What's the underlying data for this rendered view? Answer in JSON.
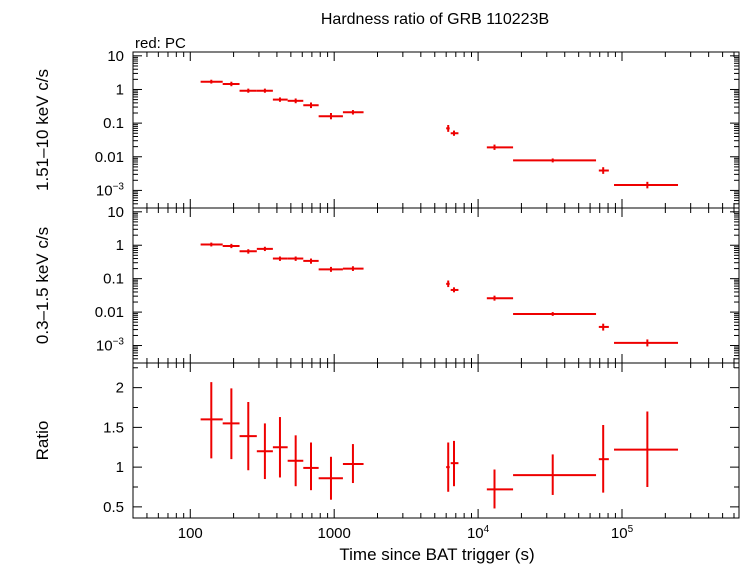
{
  "chart_data": {
    "type": "scatter",
    "title": "Hardness ratio of GRB 110223B",
    "legend": "red: PC",
    "xlabel": "Time since BAT trigger (s)",
    "xscale": "log",
    "xlim": [
      40,
      650000
    ],
    "x_ticks": [
      {
        "value": 100,
        "label": "100"
      },
      {
        "value": 1000,
        "label": "1000"
      },
      {
        "value": 10000,
        "label": "10",
        "exp": "4"
      },
      {
        "value": 100000,
        "label": "10",
        "exp": "5"
      }
    ],
    "color": "#ee0000",
    "panels": [
      {
        "name": "hard-band",
        "ylabel": "1.51–10 keV c/s",
        "yscale": "log",
        "ylim": [
          0.0003,
          13
        ],
        "y_ticks": [
          {
            "value": 10,
            "label": "10"
          },
          {
            "value": 1,
            "label": "1"
          },
          {
            "value": 0.1,
            "label": "0.1"
          },
          {
            "value": 0.01,
            "label": "0.01"
          },
          {
            "value": 0.001,
            "label": "10",
            "exp": "−3"
          }
        ],
        "points": [
          {
            "x": 140,
            "xlo": 118,
            "xhi": 168,
            "y": 1.7,
            "ylo": 1.5,
            "yhi": 1.95
          },
          {
            "x": 193,
            "xlo": 168,
            "xhi": 220,
            "y": 1.45,
            "ylo": 1.25,
            "yhi": 1.7
          },
          {
            "x": 253,
            "xlo": 220,
            "xhi": 290,
            "y": 0.92,
            "ylo": 0.8,
            "yhi": 1.06
          },
          {
            "x": 330,
            "xlo": 290,
            "xhi": 375,
            "y": 0.92,
            "ylo": 0.8,
            "yhi": 1.06
          },
          {
            "x": 420,
            "xlo": 375,
            "xhi": 475,
            "y": 0.5,
            "ylo": 0.43,
            "yhi": 0.58
          },
          {
            "x": 540,
            "xlo": 475,
            "xhi": 610,
            "y": 0.46,
            "ylo": 0.39,
            "yhi": 0.54
          },
          {
            "x": 690,
            "xlo": 610,
            "xhi": 780,
            "y": 0.34,
            "ylo": 0.28,
            "yhi": 0.41
          },
          {
            "x": 950,
            "xlo": 780,
            "xhi": 1150,
            "y": 0.16,
            "ylo": 0.13,
            "yhi": 0.2
          },
          {
            "x": 1350,
            "xlo": 1150,
            "xhi": 1600,
            "y": 0.21,
            "ylo": 0.18,
            "yhi": 0.245
          },
          {
            "x": 6200,
            "xlo": 6000,
            "xhi": 6350,
            "y": 0.07,
            "ylo": 0.055,
            "yhi": 0.088
          },
          {
            "x": 6800,
            "xlo": 6450,
            "xhi": 7300,
            "y": 0.05,
            "ylo": 0.042,
            "yhi": 0.06
          },
          {
            "x": 13000,
            "xlo": 11500,
            "xhi": 17500,
            "y": 0.019,
            "ylo": 0.016,
            "yhi": 0.023
          },
          {
            "x": 33000,
            "xlo": 17500,
            "xhi": 66000,
            "y": 0.0078,
            "ylo": 0.0068,
            "yhi": 0.0089
          },
          {
            "x": 74000,
            "xlo": 69000,
            "xhi": 81000,
            "y": 0.0039,
            "ylo": 0.0031,
            "yhi": 0.0049
          },
          {
            "x": 150000,
            "xlo": 88000,
            "xhi": 245000,
            "y": 0.00145,
            "ylo": 0.00115,
            "yhi": 0.0018
          }
        ]
      },
      {
        "name": "soft-band",
        "ylabel": "0.3–1.5 keV c/s",
        "yscale": "log",
        "ylim": [
          0.0003,
          13
        ],
        "y_ticks": [
          {
            "value": 10,
            "label": "10"
          },
          {
            "value": 1,
            "label": "1"
          },
          {
            "value": 0.1,
            "label": "0.1"
          },
          {
            "value": 0.01,
            "label": "0.01"
          },
          {
            "value": 0.001,
            "label": "10",
            "exp": "−3"
          }
        ],
        "points": [
          {
            "x": 140,
            "xlo": 118,
            "xhi": 168,
            "y": 1.05,
            "ylo": 0.92,
            "yhi": 1.2
          },
          {
            "x": 193,
            "xlo": 168,
            "xhi": 220,
            "y": 0.95,
            "ylo": 0.82,
            "yhi": 1.1
          },
          {
            "x": 253,
            "xlo": 220,
            "xhi": 290,
            "y": 0.66,
            "ylo": 0.56,
            "yhi": 0.76
          },
          {
            "x": 330,
            "xlo": 290,
            "xhi": 375,
            "y": 0.78,
            "ylo": 0.67,
            "yhi": 0.9
          },
          {
            "x": 420,
            "xlo": 375,
            "xhi": 475,
            "y": 0.4,
            "ylo": 0.34,
            "yhi": 0.46
          },
          {
            "x": 540,
            "xlo": 475,
            "xhi": 610,
            "y": 0.4,
            "ylo": 0.34,
            "yhi": 0.46
          },
          {
            "x": 690,
            "xlo": 610,
            "xhi": 780,
            "y": 0.34,
            "ylo": 0.28,
            "yhi": 0.4
          },
          {
            "x": 950,
            "xlo": 780,
            "xhi": 1150,
            "y": 0.19,
            "ylo": 0.16,
            "yhi": 0.225
          },
          {
            "x": 1350,
            "xlo": 1150,
            "xhi": 1600,
            "y": 0.2,
            "ylo": 0.17,
            "yhi": 0.235
          },
          {
            "x": 6200,
            "xlo": 6000,
            "xhi": 6350,
            "y": 0.07,
            "ylo": 0.056,
            "yhi": 0.088
          },
          {
            "x": 6800,
            "xlo": 6450,
            "xhi": 7300,
            "y": 0.046,
            "ylo": 0.039,
            "yhi": 0.055
          },
          {
            "x": 13000,
            "xlo": 11500,
            "xhi": 17500,
            "y": 0.026,
            "ylo": 0.022,
            "yhi": 0.031
          },
          {
            "x": 33000,
            "xlo": 17500,
            "xhi": 66000,
            "y": 0.0088,
            "ylo": 0.0077,
            "yhi": 0.01
          },
          {
            "x": 74000,
            "xlo": 69000,
            "xhi": 81000,
            "y": 0.0036,
            "ylo": 0.0028,
            "yhi": 0.0045
          },
          {
            "x": 150000,
            "xlo": 88000,
            "xhi": 245000,
            "y": 0.0012,
            "ylo": 0.00094,
            "yhi": 0.00152
          }
        ]
      },
      {
        "name": "ratio",
        "ylabel": "Ratio",
        "yscale": "linear",
        "ylim": [
          0.36,
          2.31
        ],
        "y_ticks": [
          {
            "value": 2,
            "label": "2"
          },
          {
            "value": 1.5,
            "label": "1.5"
          },
          {
            "value": 1,
            "label": "1"
          },
          {
            "value": 0.5,
            "label": "0.5"
          }
        ],
        "y_minor": [
          2.25,
          1.75,
          1.25,
          0.75
        ],
        "points": [
          {
            "x": 140,
            "xlo": 118,
            "xhi": 168,
            "y": 1.6,
            "ylo": 1.11,
            "yhi": 2.07
          },
          {
            "x": 193,
            "xlo": 168,
            "xhi": 220,
            "y": 1.55,
            "ylo": 1.1,
            "yhi": 1.99
          },
          {
            "x": 253,
            "xlo": 220,
            "xhi": 290,
            "y": 1.39,
            "ylo": 0.96,
            "yhi": 1.82
          },
          {
            "x": 330,
            "xlo": 290,
            "xhi": 375,
            "y": 1.2,
            "ylo": 0.85,
            "yhi": 1.55
          },
          {
            "x": 420,
            "xlo": 375,
            "xhi": 475,
            "y": 1.25,
            "ylo": 0.87,
            "yhi": 1.63
          },
          {
            "x": 540,
            "xlo": 475,
            "xhi": 610,
            "y": 1.08,
            "ylo": 0.76,
            "yhi": 1.4
          },
          {
            "x": 690,
            "xlo": 610,
            "xhi": 780,
            "y": 0.99,
            "ylo": 0.71,
            "yhi": 1.31
          },
          {
            "x": 950,
            "xlo": 780,
            "xhi": 1150,
            "y": 0.86,
            "ylo": 0.59,
            "yhi": 1.13
          },
          {
            "x": 1350,
            "xlo": 1150,
            "xhi": 1600,
            "y": 1.04,
            "ylo": 0.8,
            "yhi": 1.29
          },
          {
            "x": 6200,
            "xlo": 6000,
            "xhi": 6350,
            "y": 1.0,
            "ylo": 0.69,
            "yhi": 1.31
          },
          {
            "x": 6800,
            "xlo": 6450,
            "xhi": 7300,
            "y": 1.05,
            "ylo": 0.76,
            "yhi": 1.33
          },
          {
            "x": 13000,
            "xlo": 11500,
            "xhi": 17500,
            "y": 0.72,
            "ylo": 0.48,
            "yhi": 0.97
          },
          {
            "x": 33000,
            "xlo": 17500,
            "xhi": 66000,
            "y": 0.9,
            "ylo": 0.65,
            "yhi": 1.16
          },
          {
            "x": 74000,
            "xlo": 69000,
            "xhi": 81000,
            "y": 1.1,
            "ylo": 0.68,
            "yhi": 1.53
          },
          {
            "x": 150000,
            "xlo": 88000,
            "xhi": 245000,
            "y": 1.22,
            "ylo": 0.75,
            "yhi": 1.7
          }
        ]
      }
    ]
  }
}
